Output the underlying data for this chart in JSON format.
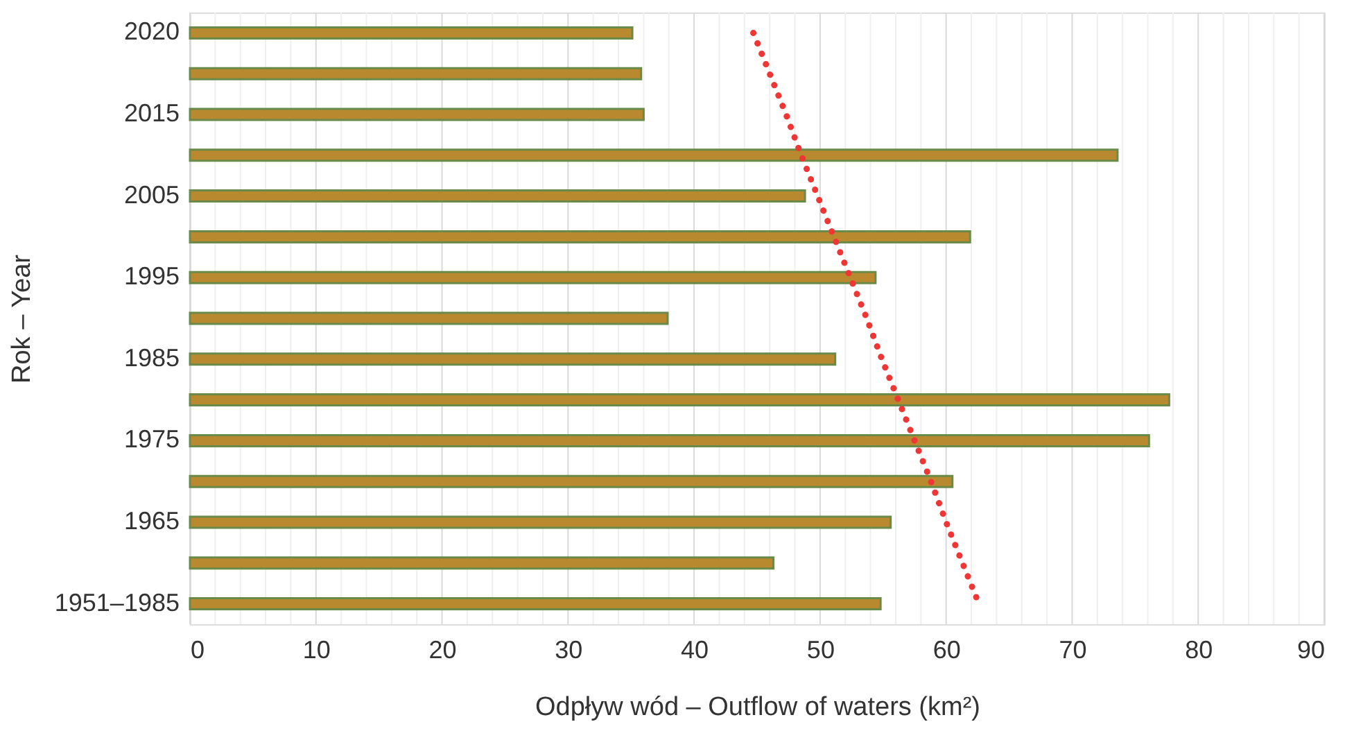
{
  "chart_data": {
    "type": "bar",
    "orientation": "horizontal",
    "xlabel": "Odpływ wód – Outflow of waters (km²)",
    "ylabel": "Rok – Year",
    "categories": [
      "2020",
      null,
      "2015",
      null,
      "2005",
      null,
      "1995",
      null,
      "1985",
      null,
      "1975",
      null,
      "1965",
      null,
      "1951–1985"
    ],
    "series": [
      {
        "color": "#b8892e",
        "values": [
          35.1,
          35.8,
          36.0,
          73.6,
          48.8,
          61.9,
          54.4,
          37.9,
          51.2,
          77.7,
          76.1,
          60.5,
          55.6,
          46.3,
          54.8
        ]
      },
      {
        "type": "line",
        "color": "#f03535",
        "line_style": "dotted",
        "values": [
          44.7,
          46.0,
          47.3,
          48.5,
          49.8,
          51.1,
          52.4,
          53.7,
          54.9,
          56.2,
          57.5,
          58.8,
          60.0,
          61.3,
          62.6
        ]
      }
    ],
    "xlim": [
      0,
      90
    ],
    "xticks": [
      0,
      {
        "value": 2,
        "label": null
      },
      {
        "value": 4,
        "label": null
      },
      {
        "value": 6,
        "label": null
      },
      {
        "value": 8,
        "label": null
      },
      10,
      {
        "value": 12,
        "label": null
      },
      {
        "value": 14,
        "label": null
      },
      {
        "value": 16,
        "label": null
      },
      {
        "value": 18,
        "label": null
      },
      20,
      {
        "value": 22,
        "label": null
      },
      {
        "value": 24,
        "label": null
      },
      {
        "value": 26,
        "label": null
      },
      {
        "value": 28,
        "label": null
      },
      30,
      {
        "value": 32,
        "label": null
      },
      {
        "value": 34,
        "label": null
      },
      {
        "value": 36,
        "label": null
      },
      {
        "value": 38,
        "label": null
      },
      40,
      {
        "value": 42,
        "label": null
      },
      {
        "value": 44,
        "label": null
      },
      {
        "value": 46,
        "label": null
      },
      {
        "value": 48,
        "label": null
      },
      50,
      {
        "value": 52,
        "label": null
      },
      {
        "value": 54,
        "label": null
      },
      {
        "value": 56,
        "label": null
      },
      {
        "value": 58,
        "label": null
      },
      60,
      {
        "value": 62,
        "label": null
      },
      {
        "value": 64,
        "label": null
      },
      {
        "value": 66,
        "label": null
      },
      {
        "value": 68,
        "label": null
      },
      70,
      {
        "value": 72,
        "label": null
      },
      {
        "value": 74,
        "label": null
      },
      {
        "value": 76,
        "label": null
      },
      {
        "value": 78,
        "label": null
      },
      80,
      {
        "value": 82,
        "label": null
      },
      {
        "value": 84,
        "label": null
      },
      {
        "value": 86,
        "label": null
      },
      {
        "value": 88,
        "label": null
      },
      90
    ],
    "grid": "x"
  }
}
